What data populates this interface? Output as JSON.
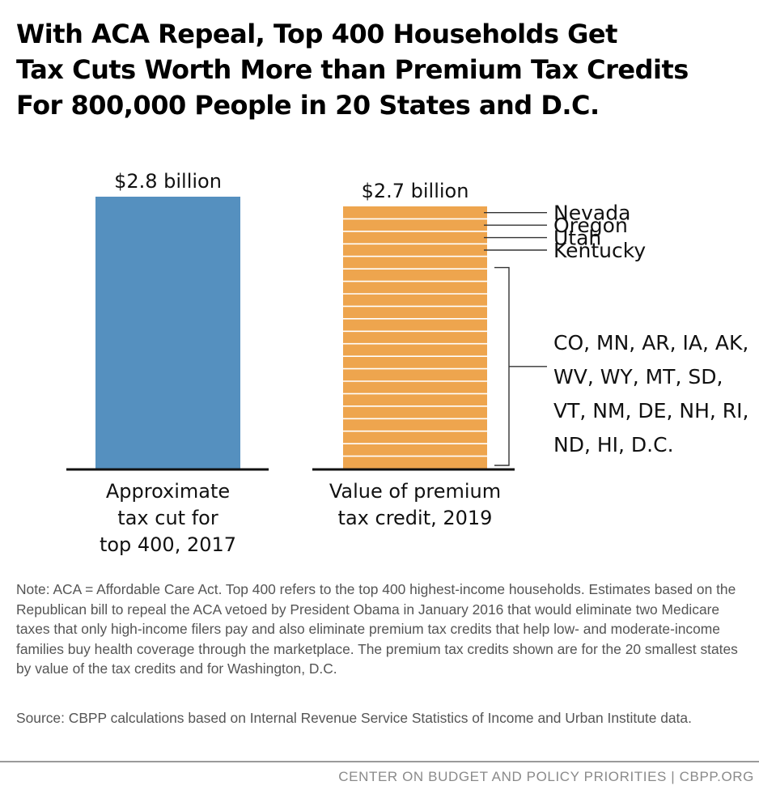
{
  "title": {
    "line1": "With ACA Repeal, Top 400 Households Get",
    "line2": "Tax Cuts Worth More than Premium Tax Credits",
    "line3": "For 800,000 People in 20 States and D.C."
  },
  "chart_data": {
    "type": "bar",
    "title": "With ACA Repeal, Top 400 Households Get Tax Cuts Worth More than Premium Tax Credits For 800,000 People in 20 States and D.C.",
    "units": "billions of dollars",
    "ylim": [
      0,
      2.8
    ],
    "bars": [
      {
        "category_lines": [
          "Approximate",
          "tax cut for",
          "top 400, 2017"
        ],
        "value": 2.8,
        "label": "$2.8 billion",
        "color": "#5590bf",
        "stacked": false
      },
      {
        "category_lines": [
          "Value of premium",
          "tax credit, 2019"
        ],
        "value": 2.7,
        "label": "$2.7 billion",
        "color": "#eea54e",
        "stacked": true,
        "segment_count": 21
      }
    ],
    "callouts": [
      {
        "label": "Nevada"
      },
      {
        "label": "Oregon"
      },
      {
        "label": "Utah"
      },
      {
        "label": "Kentucky"
      }
    ],
    "group_lines": [
      "CO, MN, AR, IA, AK,",
      "WV, WY, MT, SD,",
      "VT, NM, DE, NH, RI,",
      "ND, HI, D.C."
    ]
  },
  "note": "Note: ACA = Affordable Care Act.  Top 400 refers to the top 400 highest-income households. Estimates based on the Republican bill to repeal the ACA vetoed by President Obama in January 2016 that would eliminate two Medicare taxes that only high-income filers pay and also eliminate premium tax credits that help low- and moderate-income families buy health coverage through the marketplace. The premium tax credits shown are for the 20 smallest states by value of the tax credits and for Washington, D.C.",
  "source": "Source: CBPP calculations based on Internal Revenue Service Statistics of Income and Urban Institute data.",
  "footer": "CENTER ON BUDGET AND POLICY PRIORITIES | CBPP.ORG",
  "colors": {
    "tax_cut_bar": "#5590bf",
    "credit_bar": "#eea54e",
    "segment_line": "#ffffff",
    "callout_line": "#333333",
    "baseline": "#111111"
  }
}
